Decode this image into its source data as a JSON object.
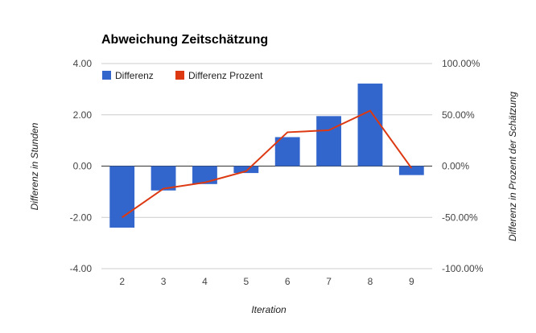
{
  "chart_data": {
    "type": "bar",
    "title": "Abweichung Zeitschätzung",
    "xlabel": "Iteration",
    "ylabel": "Differenz in Stunden",
    "y2label": "Differenz in Prozent der Schätzung",
    "categories": [
      "2",
      "3",
      "4",
      "5",
      "6",
      "7",
      "8",
      "9"
    ],
    "ylim": [
      -4,
      4
    ],
    "y_ticks": [
      "4.00",
      "2.00",
      "0.00",
      "-2.00",
      "-4.00"
    ],
    "y2lim": [
      -100,
      100
    ],
    "y2_ticks": [
      "100.00%",
      "50.00%",
      "0.00%",
      "-50.00%",
      "-100.00%"
    ],
    "series": [
      {
        "name": "Differenz",
        "type": "bar",
        "axis": "left",
        "color": "#3366cc",
        "values": [
          -2.4,
          -0.95,
          -0.7,
          -0.27,
          1.13,
          1.95,
          3.22,
          -0.35
        ]
      },
      {
        "name": "Differenz Prozent",
        "type": "line",
        "axis": "right",
        "color": "#dc3912",
        "values": [
          -50,
          -22,
          -16,
          -5,
          33,
          35,
          54,
          -2
        ]
      }
    ],
    "legend_position": "top-left",
    "grid": true
  }
}
